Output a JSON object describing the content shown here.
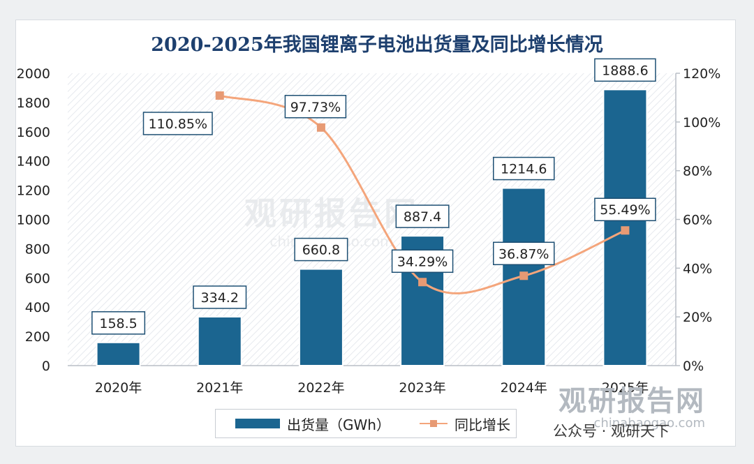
{
  "chart_data": {
    "type": "bar",
    "title": "2020-2025年我国锂离子电池出货量及同比增长情况",
    "categories": [
      "2020年",
      "2021年",
      "2022年",
      "2023年",
      "2024年",
      "2025年"
    ],
    "series": [
      {
        "name": "出货量（GWh）",
        "type": "bar",
        "axis": "left",
        "values": [
          158.5,
          334.2,
          660.8,
          887.4,
          1214.6,
          1888.6
        ],
        "labels": [
          "158.5",
          "334.2",
          "660.8",
          "887.4",
          "1214.6",
          "1888.6"
        ]
      },
      {
        "name": "同比增长",
        "type": "line",
        "axis": "right",
        "values": [
          null,
          110.85,
          97.73,
          34.29,
          36.87,
          55.49
        ],
        "labels": [
          "",
          "110.85%",
          "97.73%",
          "34.29%",
          "36.87%",
          "55.49%"
        ]
      }
    ],
    "y_left": {
      "lim": [
        0,
        2000
      ],
      "ticks": [
        "0",
        "200",
        "400",
        "600",
        "800",
        "1000",
        "1200",
        "1400",
        "1600",
        "1800",
        "2000"
      ]
    },
    "y_right": {
      "lim": [
        0,
        120
      ],
      "ticks": [
        "0%",
        "20%",
        "40%",
        "60%",
        "80%",
        "100%",
        "120%"
      ]
    },
    "grid": false,
    "legend": "bottom"
  },
  "colors": {
    "bar": "#1b6590",
    "line": "#f4a57b",
    "marker": "#e79a74",
    "title": "#1d3f6e"
  },
  "legend": {
    "bar_label": "出货量（GWh）",
    "line_label": "同比增长"
  },
  "watermark": {
    "brand": "观研报告网",
    "url": "chinabaogao.com",
    "social": "公众号 · 观研天下"
  }
}
